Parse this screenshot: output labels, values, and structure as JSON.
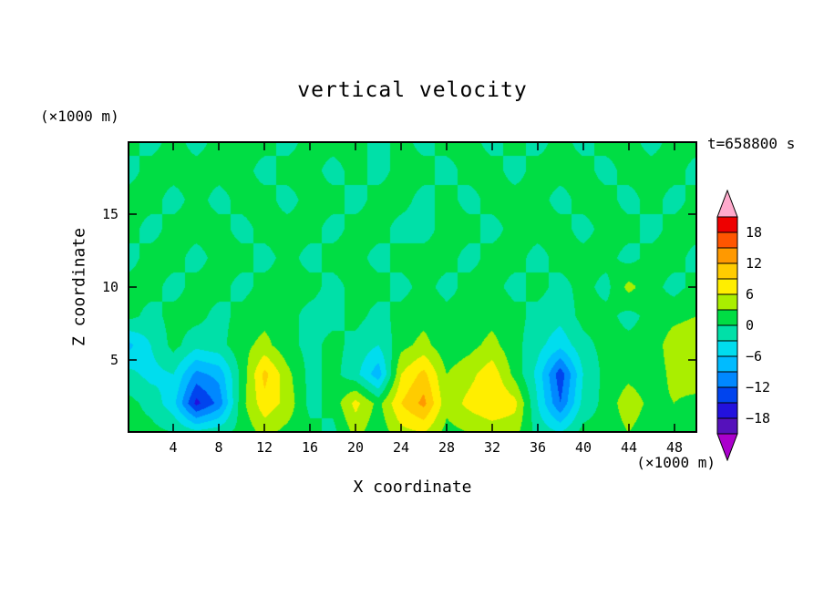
{
  "title": "vertical velocity",
  "y_unit_label": "(×1000 m)",
  "x_unit_label": "(×1000 m)",
  "time_label": "t=658800 s",
  "x_axis": {
    "label": "X coordinate",
    "range": [
      0,
      50
    ],
    "ticks": [
      4,
      8,
      12,
      16,
      20,
      24,
      28,
      32,
      36,
      40,
      44,
      48
    ]
  },
  "z_axis": {
    "label": "Z coordinate",
    "range": [
      0,
      20
    ],
    "ticks": [
      5,
      10,
      15
    ]
  },
  "colorbar": {
    "labels": [
      "18",
      "12",
      "6",
      "0",
      "−6",
      "−12",
      "−18"
    ]
  },
  "chart_data": {
    "type": "heatmap",
    "title": "vertical velocity",
    "xlabel": "X coordinate (×1000 m)",
    "ylabel": "Z coordinate (×1000 m)",
    "time": "t=658800 s",
    "contour_interval": 3,
    "levels": [
      -21,
      -18,
      -15,
      -12,
      -9,
      -6,
      -3,
      0,
      3,
      6,
      9,
      12,
      15,
      18,
      21
    ],
    "colors": [
      "#aa00cc",
      "#5511bb",
      "#2211dd",
      "#0044ee",
      "#0088ff",
      "#00bbff",
      "#00ddee",
      "#00e0a8",
      "#00dd44",
      "#aaee00",
      "#ffee00",
      "#ffcc00",
      "#ff9900",
      "#ff5500",
      "#ee0000",
      "#ffaacc"
    ],
    "x": [
      0,
      2,
      4,
      6,
      8,
      10,
      12,
      14,
      16,
      18,
      20,
      22,
      24,
      26,
      28,
      30,
      32,
      34,
      36,
      38,
      40,
      42,
      44,
      46,
      48,
      50
    ],
    "z": [
      0,
      2,
      4,
      6,
      8,
      10,
      12,
      14,
      16,
      18,
      20
    ],
    "values_order": "rows bottom to top (z=0 first)",
    "values": [
      [
        1,
        1,
        0,
        -2,
        -1,
        1,
        4,
        2,
        1,
        -1,
        4,
        1,
        5,
        6,
        2,
        3,
        4,
        4,
        -1,
        -3,
        1,
        1,
        3,
        1,
        2,
        1
      ],
      [
        1,
        -1,
        -5,
        -16,
        -11,
        2,
        8,
        5,
        -1,
        1,
        7,
        2,
        9,
        13,
        4,
        7,
        9,
        7,
        -3,
        -12,
        -2,
        1,
        5,
        2,
        3,
        2
      ],
      [
        -2,
        -4,
        -3,
        -10,
        -8,
        1,
        10,
        4,
        -1,
        1,
        -2,
        -8,
        6,
        10,
        3,
        5,
        8,
        2,
        -4,
        -14,
        -3,
        1,
        2,
        1,
        4,
        5
      ],
      [
        -7,
        -3,
        1,
        -2,
        -1,
        2,
        4,
        1,
        -1,
        1,
        -1,
        -3,
        2,
        4,
        1,
        2,
        4,
        1,
        -2,
        -5,
        -1,
        1,
        1,
        1,
        5,
        6
      ],
      [
        1,
        -1,
        1,
        1,
        -1,
        1,
        2,
        1,
        -1,
        -1,
        1,
        -1,
        1,
        2,
        1,
        1,
        2,
        1,
        -1,
        -2,
        1,
        1,
        -1,
        1,
        2,
        3
      ],
      [
        1,
        1,
        -1,
        1,
        1,
        -1,
        1,
        1,
        1,
        -1,
        1,
        1,
        -1,
        1,
        -1,
        1,
        1,
        -1,
        1,
        -1,
        1,
        -1,
        4,
        1,
        -1,
        1
      ],
      [
        -1,
        1,
        1,
        -1,
        1,
        1,
        -1,
        1,
        -1,
        1,
        1,
        -1,
        1,
        1,
        1,
        -1,
        1,
        1,
        -1,
        1,
        1,
        1,
        -1,
        1,
        1,
        -1
      ],
      [
        1,
        -1,
        1,
        1,
        1,
        -1,
        1,
        1,
        1,
        -1,
        1,
        1,
        -1,
        -1,
        1,
        1,
        -1,
        1,
        1,
        1,
        -1,
        1,
        1,
        -1,
        1,
        1
      ],
      [
        1,
        1,
        -1,
        1,
        -1,
        1,
        1,
        -1,
        1,
        1,
        -1,
        1,
        1,
        -1,
        1,
        -1,
        1,
        1,
        1,
        -1,
        1,
        1,
        -1,
        1,
        -1,
        1
      ],
      [
        -1,
        1,
        1,
        1,
        1,
        1,
        -1,
        1,
        1,
        -1,
        1,
        -1,
        1,
        1,
        -1,
        1,
        1,
        -1,
        1,
        1,
        1,
        -1,
        1,
        1,
        1,
        -1
      ],
      [
        1,
        -1,
        1,
        -1,
        1,
        1,
        1,
        -1,
        1,
        1,
        1,
        -1,
        1,
        -1,
        1,
        1,
        -1,
        1,
        -1,
        1,
        -1,
        1,
        1,
        -1,
        1,
        1
      ]
    ]
  }
}
